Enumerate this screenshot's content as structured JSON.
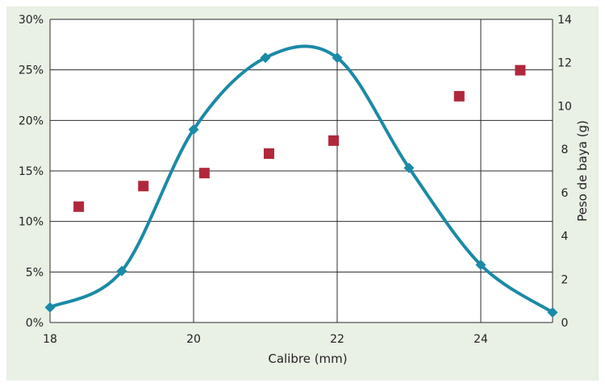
{
  "chart_data": {
    "type": "line+scatter",
    "xlabel": "Calibre (mm)",
    "ylabel_left": "",
    "ylabel_right": "Peso de baya (g)",
    "xlim": [
      18,
      25
    ],
    "ylim_left": [
      0,
      30
    ],
    "ylim_right": [
      0,
      14
    ],
    "x_ticks": [
      18,
      20,
      22,
      24
    ],
    "x_tick_labels": [
      "18",
      "20",
      "22",
      "24"
    ],
    "y_left_ticks": [
      0,
      5,
      10,
      15,
      20,
      25,
      30
    ],
    "y_left_tick_labels": [
      "0%",
      "5%",
      "10%",
      "15%",
      "20%",
      "25%",
      "30%"
    ],
    "y_right_ticks": [
      0,
      2,
      4,
      6,
      8,
      10,
      12,
      14
    ],
    "y_right_tick_labels": [
      "0",
      "2",
      "4",
      "6",
      "8",
      "10",
      "12",
      "14"
    ],
    "grid": true,
    "series": [
      {
        "marker": "diamond",
        "color": "#1a8aa6",
        "axis": "left",
        "smooth": true,
        "x": [
          18,
          19,
          20,
          21,
          22,
          23,
          24,
          25
        ],
        "y": [
          1.5,
          5.1,
          19.1,
          26.2,
          26.2,
          15.3,
          5.7,
          1.0
        ]
      },
      {
        "marker": "square",
        "color": "#b0283c",
        "axis": "right",
        "x": [
          18.4,
          19.3,
          20.15,
          21.05,
          21.95,
          23.7,
          24.55
        ],
        "y": [
          5.35,
          6.3,
          6.9,
          7.8,
          8.4,
          10.45,
          11.65
        ]
      }
    ]
  }
}
